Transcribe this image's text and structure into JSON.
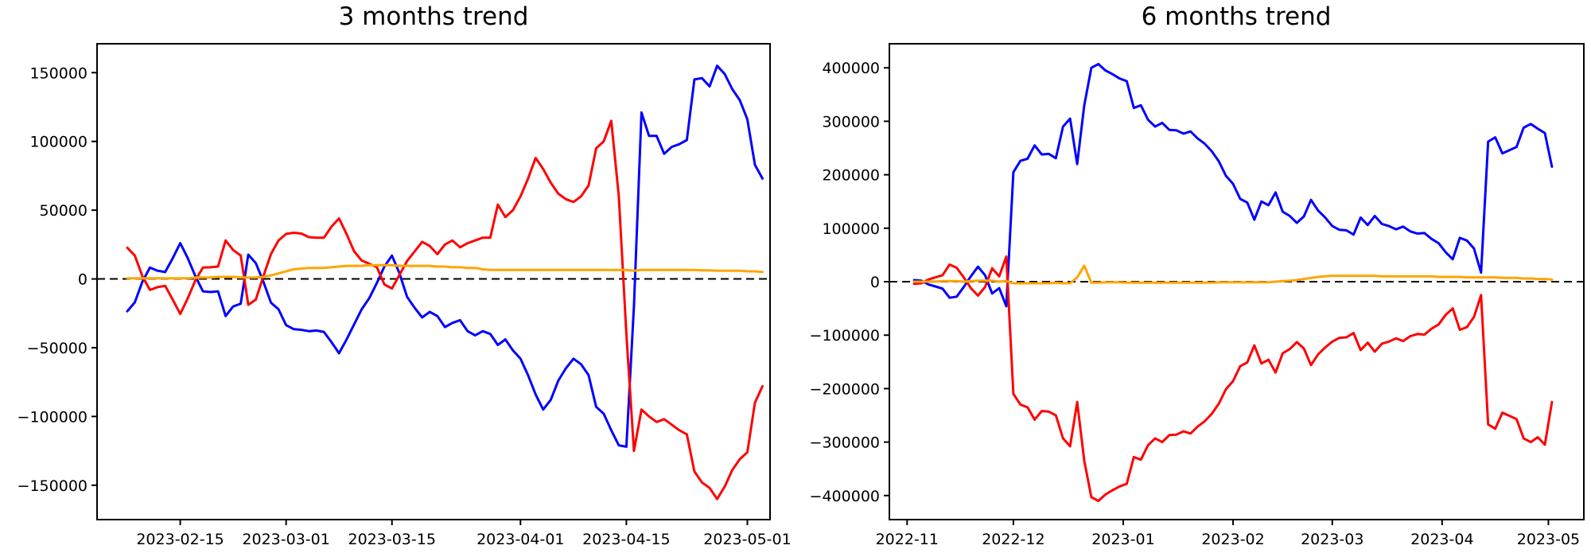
{
  "figure": {
    "background": "#ffffff",
    "text_color": "#000000"
  },
  "chart_data": [
    {
      "type": "line",
      "title": "3 months trend",
      "xlabel": "",
      "ylabel": "",
      "legend": "none",
      "grid": false,
      "x_domain": [
        "2023-02-04",
        "2023-05-04"
      ],
      "y_domain": [
        -175000,
        171000
      ],
      "zero_line": {
        "value": 0,
        "color": "#000000",
        "style": "dashed"
      },
      "x_ticks": [
        {
          "date": "2023-02-15",
          "label": "2023-02-15"
        },
        {
          "date": "2023-03-01",
          "label": "2023-03-01"
        },
        {
          "date": "2023-03-15",
          "label": "2023-03-15"
        },
        {
          "date": "2023-04-01",
          "label": "2023-04-01"
        },
        {
          "date": "2023-04-15",
          "label": "2023-04-15"
        },
        {
          "date": "2023-05-01",
          "label": "2023-05-01"
        }
      ],
      "y_ticks": [
        {
          "value": 150000,
          "label": "150000"
        },
        {
          "value": 100000,
          "label": "100000"
        },
        {
          "value": 50000,
          "label": "50000"
        },
        {
          "value": 0,
          "label": "0"
        },
        {
          "value": -50000,
          "label": "−50000"
        },
        {
          "value": -100000,
          "label": "−100000"
        },
        {
          "value": -150000,
          "label": "−150000"
        }
      ],
      "dates": [
        "2023-02-08",
        "2023-02-09",
        "2023-02-10",
        "2023-02-11",
        "2023-02-12",
        "2023-02-13",
        "2023-02-14",
        "2023-02-15",
        "2023-02-16",
        "2023-02-17",
        "2023-02-18",
        "2023-02-19",
        "2023-02-20",
        "2023-02-21",
        "2023-02-22",
        "2023-02-23",
        "2023-02-24",
        "2023-02-25",
        "2023-02-26",
        "2023-02-27",
        "2023-02-28",
        "2023-03-01",
        "2023-03-02",
        "2023-03-03",
        "2023-03-04",
        "2023-03-05",
        "2023-03-06",
        "2023-03-07",
        "2023-03-08",
        "2023-03-09",
        "2023-03-10",
        "2023-03-11",
        "2023-03-12",
        "2023-03-13",
        "2023-03-14",
        "2023-03-15",
        "2023-03-16",
        "2023-03-17",
        "2023-03-18",
        "2023-03-19",
        "2023-03-20",
        "2023-03-21",
        "2023-03-22",
        "2023-03-23",
        "2023-03-24",
        "2023-03-25",
        "2023-03-26",
        "2023-03-27",
        "2023-03-28",
        "2023-03-29",
        "2023-03-30",
        "2023-03-31",
        "2023-04-01",
        "2023-04-02",
        "2023-04-03",
        "2023-04-04",
        "2023-04-05",
        "2023-04-06",
        "2023-04-07",
        "2023-04-08",
        "2023-04-09",
        "2023-04-10",
        "2023-04-11",
        "2023-04-12",
        "2023-04-13",
        "2023-04-14",
        "2023-04-15",
        "2023-04-16",
        "2023-04-17",
        "2023-04-18",
        "2023-04-19",
        "2023-04-20",
        "2023-04-21",
        "2023-04-22",
        "2023-04-23",
        "2023-04-24",
        "2023-04-25",
        "2023-04-26",
        "2023-04-27",
        "2023-04-28",
        "2023-04-29",
        "2023-04-30",
        "2023-05-01",
        "2023-05-02",
        "2023-05-03"
      ],
      "series": [
        {
          "name": "blue",
          "color": "#0000ff",
          "values": [
            -23500,
            -17000,
            -2000,
            8300,
            6000,
            5000,
            15000,
            26000,
            15000,
            2000,
            -9000,
            -9500,
            -9000,
            -27000,
            -20000,
            -18000,
            17700,
            11500,
            -2000,
            -17300,
            -22000,
            -33600,
            -36500,
            -37000,
            -38000,
            -37500,
            -38500,
            -46000,
            -54000,
            -44000,
            -33000,
            -22000,
            -14000,
            -3000,
            9000,
            17000,
            4000,
            -13000,
            -21000,
            -28000,
            -24000,
            -27000,
            -35000,
            -32000,
            -30000,
            -38000,
            -41000,
            -38000,
            -40000,
            -48000,
            -44000,
            -52000,
            -58000,
            -70000,
            -84000,
            -95000,
            -88000,
            -74000,
            -65000,
            -58000,
            -62000,
            -70000,
            -93000,
            -98000,
            -110000,
            -121000,
            -122000,
            -20000,
            121000,
            104000,
            104000,
            91000,
            96000,
            98000,
            101000,
            145000,
            146000,
            140000,
            155000,
            149000,
            138000,
            130000,
            116000,
            83000,
            73000
          ]
        },
        {
          "name": "red",
          "color": "#ff0000",
          "values": [
            22700,
            17000,
            2000,
            -8000,
            -6000,
            -5000,
            -15000,
            -25500,
            -14000,
            -1000,
            8300,
            8500,
            9000,
            28000,
            21000,
            17000,
            -18800,
            -15000,
            2000,
            18000,
            28000,
            32700,
            33600,
            33000,
            30400,
            30000,
            30000,
            38000,
            44000,
            32600,
            20000,
            13400,
            11000,
            8600,
            -4000,
            -7000,
            3000,
            13000,
            20000,
            27000,
            24000,
            18000,
            25000,
            28000,
            23000,
            26000,
            28000,
            30000,
            30000,
            54000,
            45000,
            50000,
            60000,
            73000,
            88000,
            80000,
            70000,
            62000,
            58000,
            56000,
            60000,
            68000,
            95000,
            100000,
            115000,
            60000,
            -40000,
            -125000,
            -95000,
            -100000,
            -104000,
            -102000,
            -106000,
            -110000,
            -113000,
            -140000,
            -148000,
            -152000,
            -160000,
            -151000,
            -139000,
            -131000,
            -126000,
            -90000,
            -78000
          ]
        },
        {
          "name": "orange",
          "color": "#ffa500",
          "values": [
            500,
            500,
            500,
            500,
            500,
            500,
            500,
            500,
            500,
            1000,
            1000,
            1000,
            1500,
            1500,
            1500,
            1000,
            1000,
            1000,
            1500,
            2500,
            4000,
            5500,
            7000,
            7500,
            8000,
            8000,
            8000,
            8500,
            9000,
            9500,
            9500,
            9500,
            10000,
            10000,
            10000,
            10000,
            9500,
            9500,
            9500,
            9500,
            9500,
            9000,
            9000,
            8500,
            8500,
            8000,
            8000,
            7000,
            6500,
            6500,
            6500,
            6500,
            6500,
            6500,
            6500,
            6500,
            6500,
            6500,
            6500,
            6500,
            6500,
            6500,
            6500,
            6500,
            6500,
            6500,
            6500,
            6000,
            6500,
            6500,
            6500,
            6500,
            6500,
            6500,
            6500,
            6500,
            6300,
            6300,
            6000,
            6000,
            6000,
            6000,
            5500,
            5500,
            5000
          ]
        }
      ]
    },
    {
      "type": "line",
      "title": "6 months trend",
      "xlabel": "",
      "ylabel": "",
      "legend": "none",
      "grid": false,
      "x_domain": [
        "2022-10-27",
        "2023-05-11"
      ],
      "y_domain": [
        -445000,
        445000
      ],
      "zero_line": {
        "value": 0,
        "color": "#000000",
        "style": "dashed"
      },
      "x_ticks": [
        {
          "date": "2022-11-01",
          "label": "2022-11"
        },
        {
          "date": "2022-12-01",
          "label": "2022-12"
        },
        {
          "date": "2023-01-01",
          "label": "2023-01"
        },
        {
          "date": "2023-02-01",
          "label": "2023-02"
        },
        {
          "date": "2023-03-01",
          "label": "2023-03"
        },
        {
          "date": "2023-04-01",
          "label": "2023-04"
        },
        {
          "date": "2023-05-01",
          "label": "2023-05"
        }
      ],
      "y_ticks": [
        {
          "value": 400000,
          "label": "400000"
        },
        {
          "value": 300000,
          "label": "300000"
        },
        {
          "value": 200000,
          "label": "200000"
        },
        {
          "value": 100000,
          "label": "100000"
        },
        {
          "value": 0,
          "label": "0"
        },
        {
          "value": -100000,
          "label": "−100000"
        },
        {
          "value": -200000,
          "label": "−200000"
        },
        {
          "value": -300000,
          "label": "−300000"
        },
        {
          "value": -400000,
          "label": "−400000"
        }
      ],
      "dates": [
        "2022-11-03",
        "2022-11-05",
        "2022-11-07",
        "2022-11-09",
        "2022-11-11",
        "2022-11-13",
        "2022-11-15",
        "2022-11-17",
        "2022-11-19",
        "2022-11-21",
        "2022-11-23",
        "2022-11-25",
        "2022-11-27",
        "2022-11-29",
        "2022-12-01",
        "2022-12-03",
        "2022-12-05",
        "2022-12-07",
        "2022-12-09",
        "2022-12-11",
        "2022-12-13",
        "2022-12-15",
        "2022-12-17",
        "2022-12-19",
        "2022-12-21",
        "2022-12-23",
        "2022-12-25",
        "2022-12-27",
        "2022-12-29",
        "2022-12-31",
        "2023-01-02",
        "2023-01-04",
        "2023-01-06",
        "2023-01-08",
        "2023-01-10",
        "2023-01-12",
        "2023-01-14",
        "2023-01-16",
        "2023-01-18",
        "2023-01-20",
        "2023-01-22",
        "2023-01-24",
        "2023-01-26",
        "2023-01-28",
        "2023-01-30",
        "2023-02-01",
        "2023-02-03",
        "2023-02-05",
        "2023-02-07",
        "2023-02-09",
        "2023-02-11",
        "2023-02-13",
        "2023-02-15",
        "2023-02-17",
        "2023-02-19",
        "2023-02-21",
        "2023-02-23",
        "2023-02-25",
        "2023-02-27",
        "2023-03-01",
        "2023-03-03",
        "2023-03-05",
        "2023-03-07",
        "2023-03-09",
        "2023-03-11",
        "2023-03-13",
        "2023-03-15",
        "2023-03-17",
        "2023-03-19",
        "2023-03-21",
        "2023-03-23",
        "2023-03-25",
        "2023-03-27",
        "2023-03-29",
        "2023-03-31",
        "2023-04-02",
        "2023-04-04",
        "2023-04-06",
        "2023-04-08",
        "2023-04-10",
        "2023-04-12",
        "2023-04-14",
        "2023-04-16",
        "2023-04-18",
        "2023-04-20",
        "2023-04-22",
        "2023-04-24",
        "2023-04-26",
        "2023-04-28",
        "2023-04-30",
        "2023-05-02"
      ],
      "series": [
        {
          "name": "blue",
          "color": "#0000ff",
          "values": [
            3000,
            2000,
            -5000,
            -9000,
            -13000,
            -30000,
            -28000,
            -10000,
            10000,
            28000,
            12000,
            -22000,
            -12000,
            -46000,
            205000,
            226000,
            230000,
            255000,
            238000,
            239000,
            231000,
            290000,
            305000,
            220000,
            330000,
            400000,
            407000,
            395000,
            388000,
            380000,
            375000,
            325000,
            330000,
            303000,
            290000,
            297000,
            284000,
            283000,
            277000,
            281000,
            268000,
            258000,
            244000,
            225000,
            198000,
            183000,
            155000,
            148000,
            116000,
            150000,
            143000,
            167000,
            131000,
            123000,
            110000,
            122000,
            153000,
            133000,
            120000,
            104000,
            97000,
            96000,
            88000,
            120000,
            106000,
            123000,
            108000,
            104000,
            98000,
            103000,
            94000,
            90000,
            91000,
            80000,
            72000,
            55000,
            42000,
            82000,
            77000,
            62000,
            17000,
            262000,
            270000,
            240000,
            246000,
            252000,
            288000,
            295000,
            286000,
            278000,
            215000
          ]
        },
        {
          "name": "red",
          "color": "#ff0000",
          "values": [
            -4000,
            -3000,
            4000,
            8000,
            12000,
            32000,
            26000,
            8000,
            -12000,
            -26000,
            -10000,
            25000,
            10000,
            47000,
            -210000,
            -230000,
            -235000,
            -258000,
            -242000,
            -243000,
            -250000,
            -293000,
            -308000,
            -225000,
            -335000,
            -403000,
            -410000,
            -398000,
            -390000,
            -383000,
            -378000,
            -328000,
            -333000,
            -306000,
            -293000,
            -300000,
            -287000,
            -286000,
            -280000,
            -284000,
            -271000,
            -261000,
            -247000,
            -228000,
            -201000,
            -186000,
            -158000,
            -151000,
            -119000,
            -153000,
            -146000,
            -170000,
            -134000,
            -126000,
            -113000,
            -125000,
            -156000,
            -136000,
            -123000,
            -112000,
            -105000,
            -104000,
            -96000,
            -128000,
            -114000,
            -131000,
            -116000,
            -112000,
            -106000,
            -111000,
            -102000,
            -98000,
            -99000,
            -88000,
            -80000,
            -62000,
            -50000,
            -90000,
            -85000,
            -66000,
            -25000,
            -267000,
            -275000,
            -245000,
            -251000,
            -257000,
            -293000,
            -300000,
            -291000,
            -305000,
            -225000
          ]
        },
        {
          "name": "orange",
          "color": "#ffa500",
          "values": [
            0,
            0,
            0,
            0,
            1000,
            1000,
            1000,
            0,
            1000,
            2000,
            2000,
            2000,
            0,
            1000,
            -3000,
            -3000,
            -3000,
            -3000,
            -3000,
            -3000,
            -2000,
            -3000,
            -3000,
            8000,
            30000,
            -2000,
            -2000,
            -1000,
            -1000,
            -1000,
            -2000,
            -2000,
            -2000,
            -2000,
            -2000,
            -2000,
            -2000,
            -2000,
            -2000,
            -2000,
            -2000,
            -2000,
            -2000,
            -1000,
            -1000,
            -1000,
            -1000,
            -1000,
            -1000,
            -1000,
            -1000,
            0,
            1000,
            2000,
            3000,
            5000,
            7000,
            9000,
            10000,
            11000,
            11000,
            11000,
            11000,
            11000,
            11000,
            11000,
            10000,
            10000,
            10000,
            10000,
            10000,
            10000,
            10000,
            10000,
            9000,
            9000,
            9000,
            9000,
            8000,
            8000,
            8000,
            8000,
            8000,
            7000,
            7000,
            7000,
            6000,
            6000,
            5000,
            5000,
            4000
          ]
        }
      ]
    }
  ]
}
